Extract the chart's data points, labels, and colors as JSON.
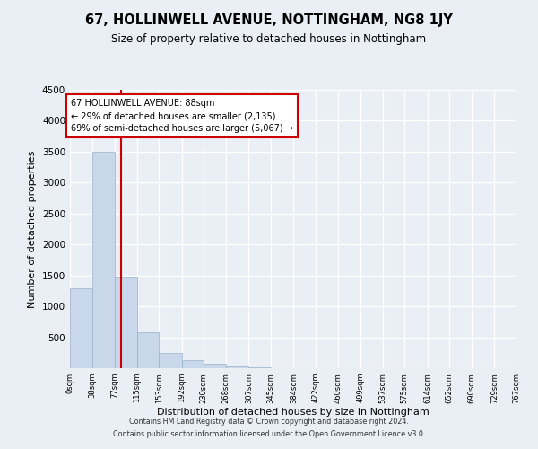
{
  "title": "67, HOLLINWELL AVENUE, NOTTINGHAM, NG8 1JY",
  "subtitle": "Size of property relative to detached houses in Nottingham",
  "xlabel": "Distribution of detached houses by size in Nottingham",
  "ylabel": "Number of detached properties",
  "bar_color": "#c8d8ea",
  "bar_edge_color": "#9ab0c8",
  "bin_edges": [
    0,
    38,
    77,
    115,
    153,
    192,
    230,
    268,
    307,
    345,
    384,
    422,
    460,
    499,
    537,
    575,
    614,
    652,
    690,
    729,
    767
  ],
  "bar_heights": [
    1290,
    3500,
    1470,
    580,
    245,
    135,
    75,
    30,
    10,
    5,
    3,
    2,
    1,
    0,
    0,
    0,
    0,
    0,
    0,
    0
  ],
  "tick_labels": [
    "0sqm",
    "38sqm",
    "77sqm",
    "115sqm",
    "153sqm",
    "192sqm",
    "230sqm",
    "268sqm",
    "307sqm",
    "345sqm",
    "384sqm",
    "422sqm",
    "460sqm",
    "499sqm",
    "537sqm",
    "575sqm",
    "614sqm",
    "652sqm",
    "690sqm",
    "729sqm",
    "767sqm"
  ],
  "ylim": [
    0,
    4500
  ],
  "yticks": [
    0,
    500,
    1000,
    1500,
    2000,
    2500,
    3000,
    3500,
    4000,
    4500
  ],
  "property_size": 88,
  "vline_color": "#cc0000",
  "annotation_title": "67 HOLLINWELL AVENUE: 88sqm",
  "annotation_line1": "← 29% of detached houses are smaller (2,135)",
  "annotation_line2": "69% of semi-detached houses are larger (5,067) →",
  "box_edge_color": "#cc0000",
  "box_face_color": "#ffffff",
  "footer_line1": "Contains HM Land Registry data © Crown copyright and database right 2024.",
  "footer_line2": "Contains public sector information licensed under the Open Government Licence v3.0.",
  "background_color": "#eaeff5",
  "grid_color": "#ffffff"
}
